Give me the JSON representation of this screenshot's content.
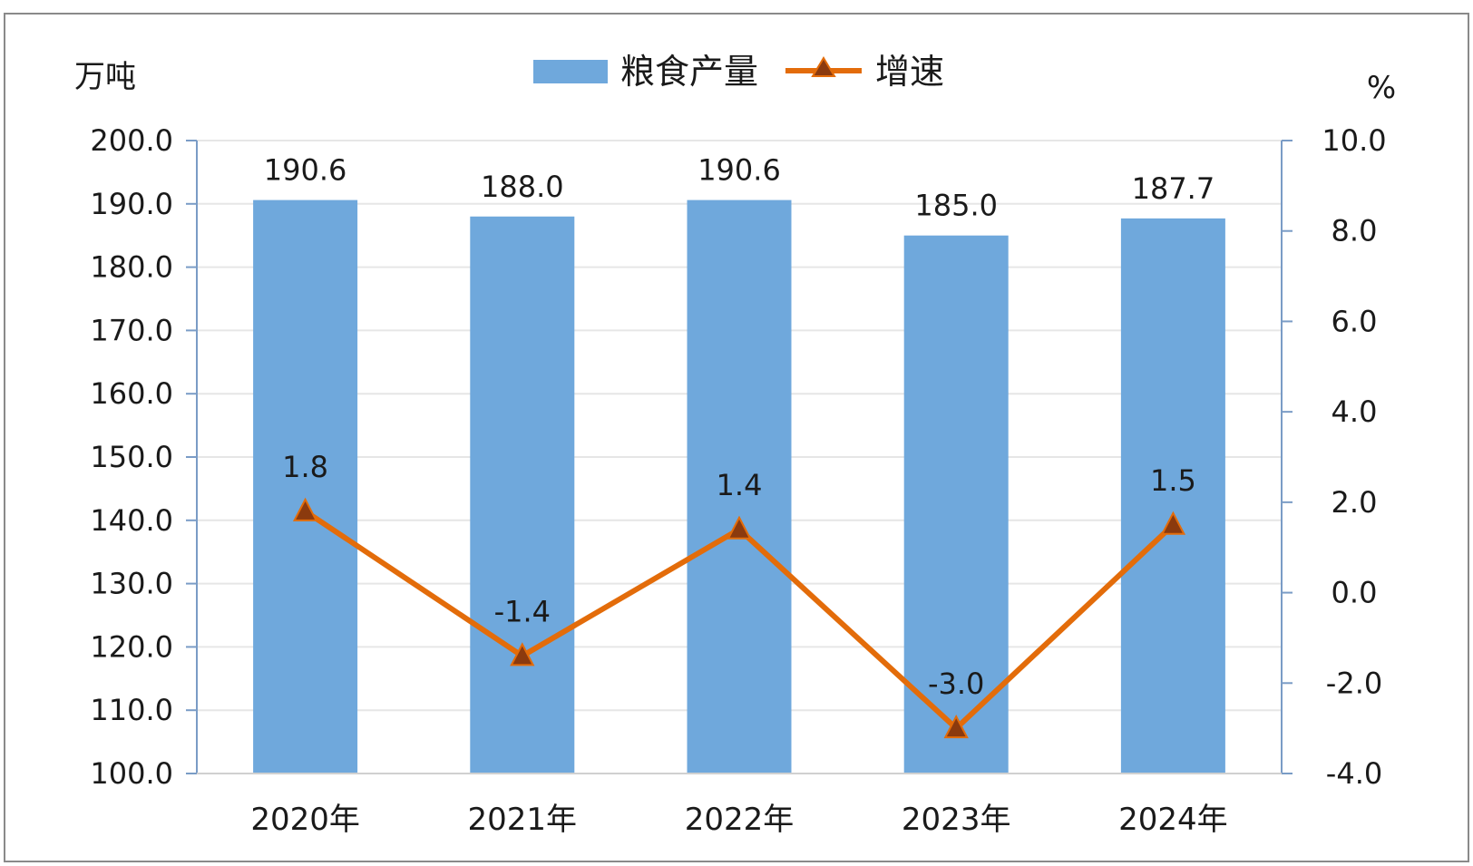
{
  "chart_data": {
    "type": "bar",
    "categories": [
      "2020年",
      "2021年",
      "2022年",
      "2023年",
      "2024年"
    ],
    "series": [
      {
        "name": "粮食产量",
        "type": "bar",
        "axis": "left",
        "values": [
          190.6,
          188.0,
          190.6,
          185.0,
          187.7
        ],
        "value_labels": [
          "190.6",
          "188.0",
          "190.6",
          "185.0",
          "187.7"
        ]
      },
      {
        "name": "增速",
        "type": "line",
        "marker": "triangle",
        "axis": "right",
        "values": [
          1.8,
          -1.4,
          1.4,
          -3.0,
          1.5
        ],
        "value_labels": [
          "1.8",
          "-1.4",
          "1.4",
          "-3.0",
          "1.5"
        ]
      }
    ],
    "y_left": {
      "unit": "万吨",
      "ylim": [
        100,
        200
      ],
      "ticks": [
        "100.0",
        "110.0",
        "120.0",
        "130.0",
        "140.0",
        "150.0",
        "160.0",
        "170.0",
        "180.0",
        "190.0",
        "200.0"
      ]
    },
    "y_right": {
      "unit": "%",
      "ylim": [
        -4,
        10
      ],
      "ticks": [
        "-4.0",
        "-2.0",
        "0.0",
        "2.0",
        "4.0",
        "6.0",
        "8.0",
        "10.0"
      ]
    },
    "legend": {
      "position": "top-center"
    },
    "grid": true,
    "colors": {
      "bar": "#6fa8dc",
      "line": "#e36c0a",
      "marker": "#8b3a0e",
      "axis": "#7a9cc6",
      "grid": "#e6e6e6"
    }
  }
}
